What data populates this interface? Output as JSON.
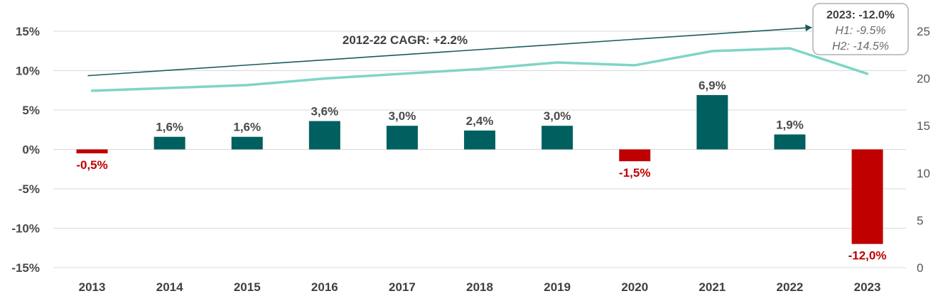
{
  "chart_data": {
    "type": "bar",
    "categories": [
      "2013",
      "2014",
      "2015",
      "2016",
      "2017",
      "2018",
      "2019",
      "2020",
      "2021",
      "2022",
      "2023"
    ],
    "series": [
      {
        "type": "bar",
        "axis": "left",
        "values": [
          -0.5,
          1.6,
          1.6,
          3.6,
          3.0,
          2.4,
          3.0,
          -1.5,
          6.9,
          1.9,
          -12.0
        ],
        "labels": [
          "-0,5%",
          "1,6%",
          "1,6%",
          "3,6%",
          "3,0%",
          "2,4%",
          "3,0%",
          "-1,5%",
          "6,9%",
          "1,9%",
          "-12,0%"
        ]
      },
      {
        "type": "line",
        "axis": "right",
        "values": [
          18.7,
          19.0,
          19.3,
          20.0,
          20.5,
          21.0,
          21.7,
          21.4,
          22.9,
          23.2,
          20.5
        ]
      }
    ],
    "trend": {
      "label": "2012-22 CAGR: +2.2%",
      "start": {
        "category": "2013",
        "value": 20.3
      },
      "end": {
        "category": "2023",
        "value": 25.4
      }
    },
    "callout": {
      "title": "2023: -12.0%",
      "lines": [
        "H1: -9.5%",
        "H2: -14.5%"
      ]
    },
    "left_axis": {
      "ylim": [
        -15,
        15
      ],
      "ticks": [
        15,
        10,
        5,
        0,
        -5,
        -10,
        -15
      ],
      "tick_labels": [
        "15%",
        "10%",
        "5%",
        "0%",
        "-5%",
        "-10%",
        "-15%"
      ]
    },
    "right_axis": {
      "ylim": [
        0,
        25
      ],
      "ticks": [
        25,
        20,
        15,
        10,
        5,
        0
      ],
      "tick_labels": [
        "25",
        "20",
        "15",
        "10",
        "5",
        "0"
      ]
    },
    "grid": true,
    "legend": "none",
    "colors": {
      "positive": "#00605f",
      "negative": "#c00000",
      "line": "#7fd5c5",
      "trend": "#1c5b59",
      "grid": "#d9d9d9",
      "callout_border": "#b0b0b0"
    }
  }
}
